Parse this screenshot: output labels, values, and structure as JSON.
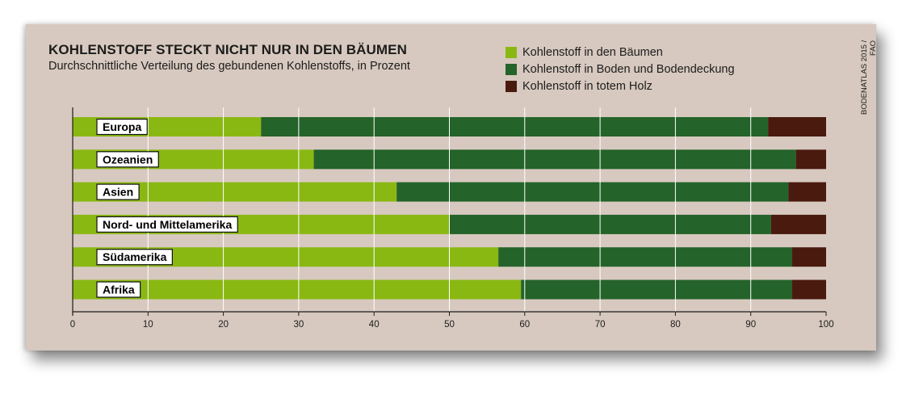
{
  "chart_data": {
    "type": "bar",
    "orientation": "horizontal",
    "stacked": true,
    "title": "KOHLENSTOFF STECKT NICHT NUR IN DEN BÄUMEN",
    "subtitle": "Durchschnittliche Verteilung des gebundenen Kohlenstoffs, in Prozent",
    "source": "BODENATLAS 2015 / FAO",
    "categories": [
      "Europa",
      "Ozeanien",
      "Asien",
      "Nord- und Mittelamerika",
      "Südamerika",
      "Afrika"
    ],
    "series": [
      {
        "name": "Kohlenstoff in den Bäumen",
        "color": "#8ab813",
        "values": [
          25,
          32,
          43,
          50,
          56.5,
          59.5
        ]
      },
      {
        "name": "Kohlenstoff in Boden und Bodendeckung",
        "color": "#24632a",
        "values": [
          67.3,
          64,
          52,
          42.7,
          39,
          36
        ]
      },
      {
        "name": "Kohlenstoff in totem Holz",
        "color": "#4a1a0f",
        "values": [
          7.7,
          4,
          5,
          7.3,
          4.5,
          4.5
        ]
      }
    ],
    "xlim": [
      0,
      100
    ],
    "xticks": [
      0,
      10,
      20,
      30,
      40,
      50,
      60,
      70,
      80,
      90,
      100
    ],
    "grid": true,
    "legend_position": "top-right"
  }
}
